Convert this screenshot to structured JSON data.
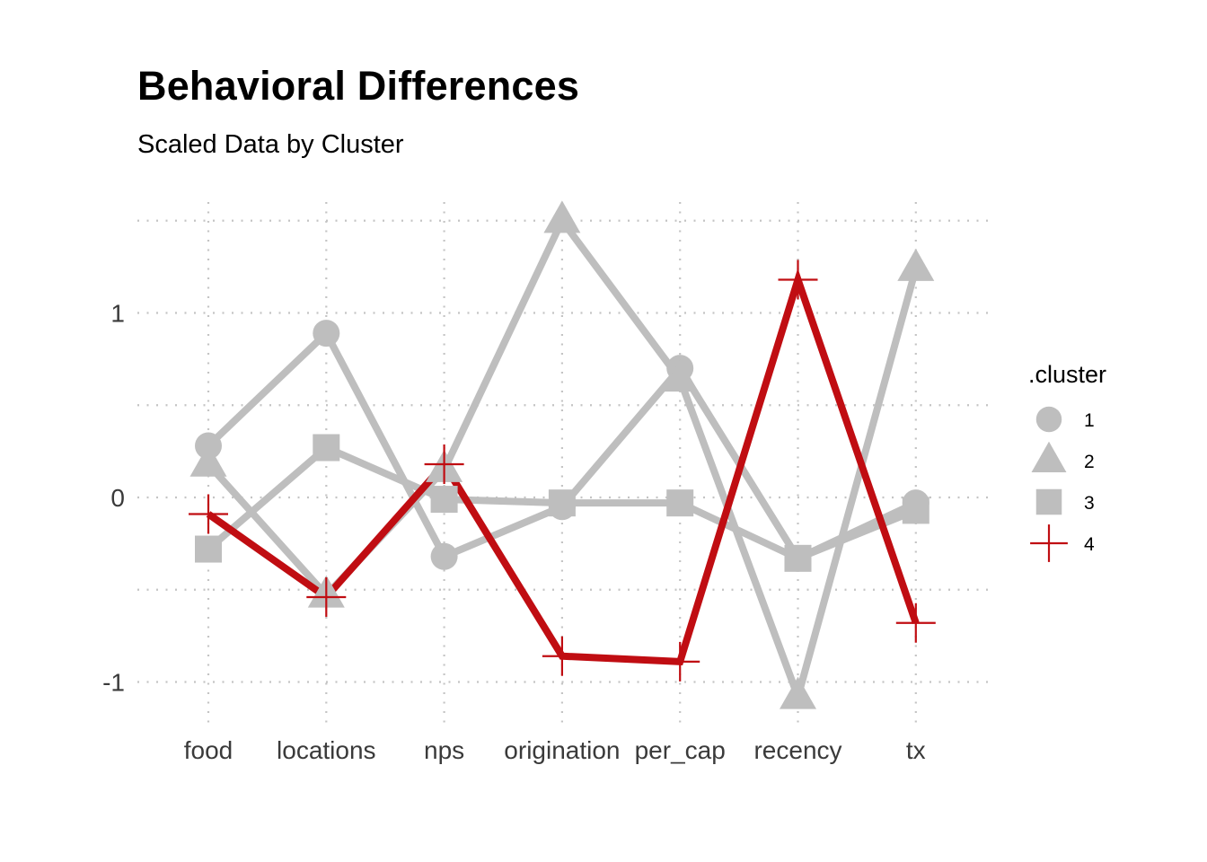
{
  "chart_data": {
    "type": "line",
    "title": "Behavioral Differences",
    "subtitle": "Scaled Data by Cluster",
    "xlabel": "",
    "ylabel": "",
    "categories": [
      "food",
      "locations",
      "nps",
      "origination",
      "per_cap",
      "recency",
      "tx"
    ],
    "ylim": [
      -1.2,
      1.6
    ],
    "yticks": [
      -1,
      0,
      1
    ],
    "ytick_labels": [
      "-1",
      "0",
      "1"
    ],
    "minor_yticks": [
      -0.5,
      0.5,
      1.5
    ],
    "grid": true,
    "legend": {
      "title": ".cluster",
      "position": "right"
    },
    "series": [
      {
        "name": "1",
        "shape": "circle",
        "color": "#bebebe",
        "values": [
          0.28,
          0.89,
          -0.32,
          -0.05,
          0.7,
          -0.33,
          -0.03
        ]
      },
      {
        "name": "2",
        "shape": "triangle",
        "color": "#bebebe",
        "values": [
          0.18,
          -0.53,
          0.15,
          1.5,
          0.64,
          -1.08,
          1.24
        ]
      },
      {
        "name": "3",
        "shape": "square",
        "color": "#bebebe",
        "values": [
          -0.28,
          0.27,
          -0.01,
          -0.03,
          -0.03,
          -0.33,
          -0.07
        ]
      },
      {
        "name": "4",
        "shape": "cross",
        "color": "#c00d12",
        "highlight": true,
        "values": [
          -0.09,
          -0.54,
          0.18,
          -0.86,
          -0.89,
          1.18,
          -0.68
        ]
      }
    ]
  }
}
